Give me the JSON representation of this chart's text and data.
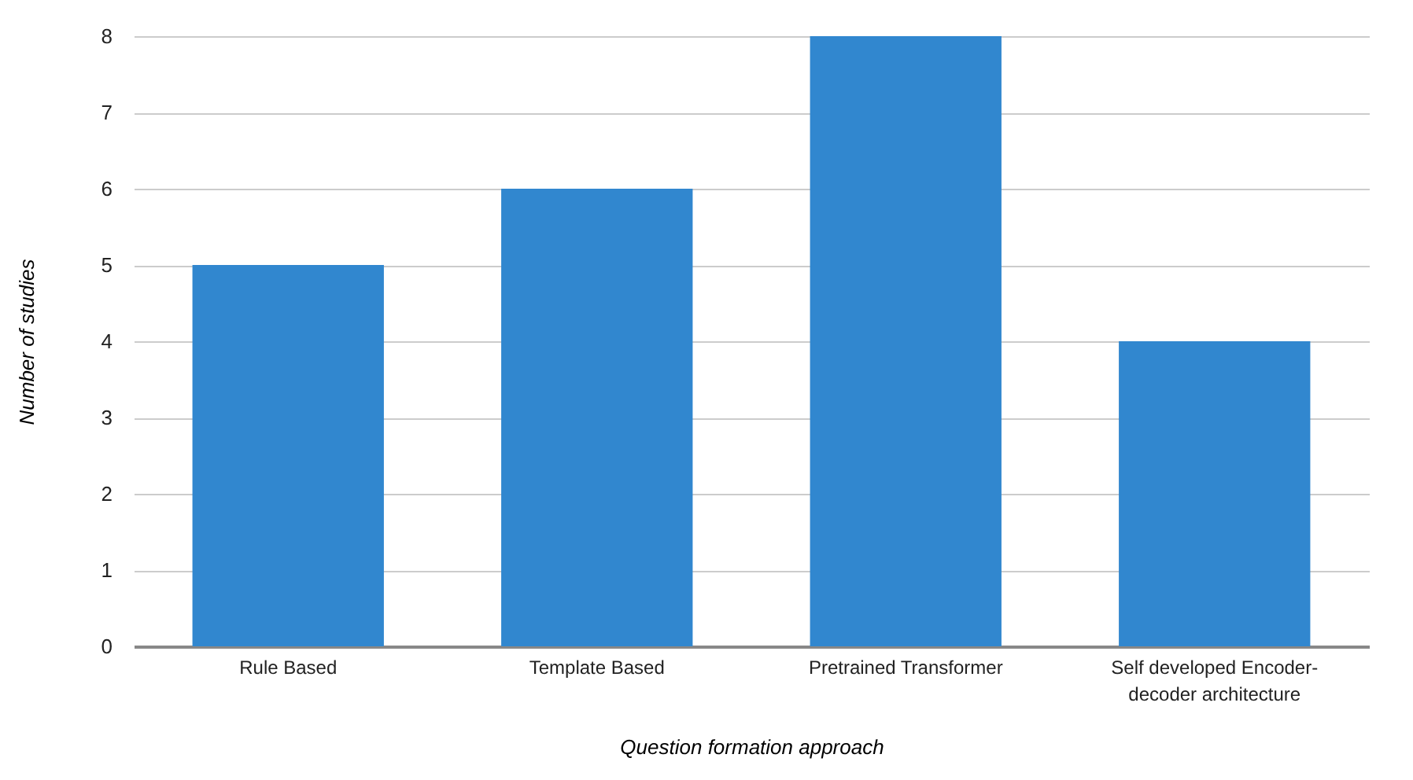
{
  "chart_data": {
    "type": "bar",
    "xlabel": "Question formation approach",
    "ylabel": "Number of studies",
    "categories": [
      "Rule Based",
      "Template Based",
      "Pretrained Transformer",
      "Self developed Encoder-decoder architecture"
    ],
    "values": [
      5,
      6,
      8,
      4
    ],
    "color": "#3187cf",
    "ylim": [
      0,
      8
    ],
    "yticks": [
      0,
      1,
      2,
      3,
      4,
      5,
      6,
      7,
      8
    ],
    "grid": "y"
  }
}
